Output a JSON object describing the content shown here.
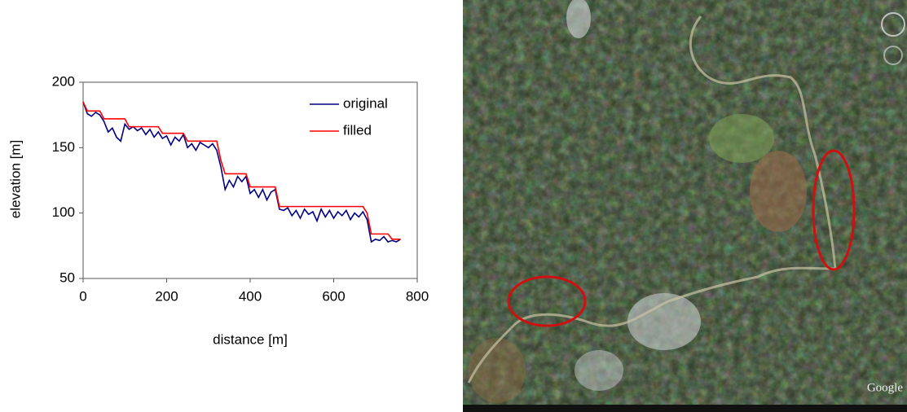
{
  "chart_data": {
    "type": "line",
    "x_label": "distance [m]",
    "y_label": "elevation [m]",
    "x": [
      0,
      10,
      20,
      30,
      40,
      50,
      60,
      70,
      80,
      90,
      100,
      110,
      120,
      130,
      140,
      150,
      160,
      170,
      180,
      190,
      200,
      210,
      220,
      230,
      240,
      250,
      260,
      270,
      280,
      290,
      300,
      310,
      320,
      330,
      340,
      350,
      360,
      370,
      380,
      390,
      400,
      410,
      420,
      430,
      440,
      450,
      460,
      470,
      480,
      490,
      500,
      510,
      520,
      530,
      540,
      550,
      560,
      570,
      580,
      590,
      600,
      610,
      620,
      630,
      640,
      650,
      660,
      670,
      680,
      690,
      700,
      710,
      720,
      730,
      740,
      750,
      760
    ],
    "series": [
      {
        "name": "original",
        "color": "#000080",
        "values": [
          185,
          176,
          174,
          177,
          175,
          170,
          162,
          165,
          158,
          155,
          168,
          164,
          166,
          163,
          165,
          160,
          164,
          158,
          162,
          157,
          159,
          152,
          158,
          155,
          160,
          150,
          153,
          148,
          154,
          152,
          150,
          153,
          148,
          135,
          118,
          125,
          120,
          128,
          124,
          128,
          115,
          118,
          112,
          118,
          110,
          116,
          118,
          103,
          102,
          104,
          98,
          102,
          96,
          103,
          99,
          101,
          94,
          103,
          97,
          102,
          96,
          101,
          98,
          102,
          95,
          100,
          97,
          101,
          95,
          78,
          80,
          79,
          82,
          78,
          79,
          78,
          80
        ]
      },
      {
        "name": "filled",
        "color": "#ff0000",
        "values": [
          185,
          178,
          178,
          178,
          178,
          172,
          172,
          172,
          172,
          172,
          172,
          166,
          166,
          166,
          166,
          166,
          166,
          166,
          166,
          161,
          161,
          161,
          161,
          161,
          161,
          155,
          155,
          155,
          155,
          155,
          155,
          155,
          155,
          140,
          130,
          130,
          130,
          130,
          130,
          130,
          120,
          120,
          120,
          120,
          120,
          120,
          120,
          105,
          105,
          105,
          105,
          105,
          105,
          105,
          105,
          105,
          105,
          105,
          105,
          105,
          105,
          105,
          105,
          105,
          105,
          105,
          105,
          105,
          100,
          84,
          84,
          84,
          84,
          84,
          80,
          80,
          80
        ]
      }
    ],
    "xlim": [
      0,
      800
    ],
    "xticks": [
      0,
      200,
      400,
      600,
      800
    ],
    "ylim": [
      50,
      200
    ],
    "yticks": [
      50,
      100,
      150,
      200
    ],
    "legend": "top-right"
  },
  "image": {
    "watermark": "Google"
  }
}
